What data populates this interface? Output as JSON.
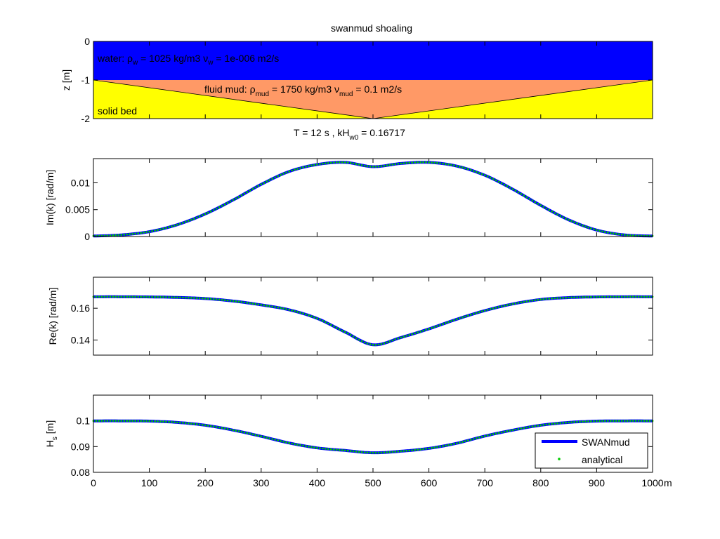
{
  "figure": {
    "title": "swanmud shoaling",
    "subtitle": "T = 12 s ,    kH",
    "subtitle_sub": "w0",
    "subtitle_tail": " = 0.16717",
    "x_unit": "m",
    "x_ticks": [
      0,
      100,
      200,
      300,
      400,
      500,
      600,
      700,
      800,
      900,
      1000
    ],
    "colors": {
      "water": "#0000ff",
      "fluid_mud": "#ff9966",
      "solid_bed": "#ffff00",
      "swan_line": "#0000ff",
      "analytical_marker": "#00cc00"
    }
  },
  "profile": {
    "ylabel": "z [m]",
    "y_ticks": [
      0,
      -1,
      -2
    ],
    "ylim": [
      -2,
      0
    ],
    "xlim": [
      0,
      1000
    ],
    "water_label": {
      "prefix": "water: ",
      "rho": "ρ",
      "rho_sub": "w",
      "mid": " = 1025 kg/m3 ",
      "nu": "ν",
      "nu_sub": "w",
      "tail": " = 1e-006 m2/s"
    },
    "mud_label": {
      "prefix": "fluid mud: ",
      "rho": "ρ",
      "rho_sub": "mud",
      "mid": " = 1750 kg/m3 ",
      "nu": "ν",
      "nu_sub": "mud",
      "tail": " = 0.1 m2/s"
    },
    "bed_label": "solid bed",
    "water_mud_interface": -1,
    "mud_bed_interface": {
      "x": [
        0,
        500,
        1000
      ],
      "z": [
        -1,
        -2,
        -1
      ]
    }
  },
  "legend": {
    "entries": [
      {
        "name": "SWANmud",
        "style": "line"
      },
      {
        "name": "analytical",
        "style": "dot"
      }
    ],
    "position": "bottom-right"
  },
  "chart_data": [
    {
      "type": "line",
      "ylabel": "Im(k) [rad/m]",
      "xlim": [
        0,
        1000
      ],
      "ylim": [
        0,
        0.0145
      ],
      "y_ticks": [
        0,
        0.005,
        0.01
      ],
      "y_tick_labels": [
        "0",
        "0.005",
        "0.01"
      ],
      "x": [
        0,
        50,
        100,
        150,
        200,
        250,
        300,
        350,
        400,
        450,
        500,
        550,
        600,
        650,
        700,
        750,
        800,
        850,
        900,
        950,
        1000
      ],
      "series": [
        {
          "name": "SWANmud",
          "values": [
            0.0001,
            0.0003,
            0.0009,
            0.0022,
            0.0042,
            0.0068,
            0.0097,
            0.0121,
            0.0134,
            0.0138,
            0.013,
            0.0136,
            0.0138,
            0.0131,
            0.0114,
            0.0088,
            0.0058,
            0.0031,
            0.0012,
            0.0003,
            0.0001
          ]
        },
        {
          "name": "analytical",
          "values": [
            0.0001,
            0.0003,
            0.0009,
            0.0022,
            0.0042,
            0.0068,
            0.0097,
            0.0121,
            0.0134,
            0.0138,
            0.013,
            0.0136,
            0.0138,
            0.0131,
            0.0114,
            0.0088,
            0.0058,
            0.0031,
            0.0012,
            0.0003,
            0.0001
          ]
        }
      ]
    },
    {
      "type": "line",
      "ylabel": "Re(k) [rad/m]",
      "xlim": [
        0,
        1000
      ],
      "ylim": [
        0.1305,
        0.1795
      ],
      "y_ticks": [
        0.14,
        0.16
      ],
      "y_tick_labels": [
        "0.14",
        "0.16"
      ],
      "x": [
        0,
        50,
        100,
        150,
        200,
        250,
        300,
        350,
        400,
        450,
        500,
        550,
        600,
        650,
        700,
        750,
        800,
        850,
        900,
        950,
        1000
      ],
      "series": [
        {
          "name": "SWANmud",
          "values": [
            0.1672,
            0.1672,
            0.1671,
            0.1668,
            0.1661,
            0.1645,
            0.1621,
            0.159,
            0.1536,
            0.145,
            0.137,
            0.1416,
            0.147,
            0.1531,
            0.1585,
            0.1627,
            0.1655,
            0.1667,
            0.1671,
            0.1672,
            0.1672
          ]
        },
        {
          "name": "analytical",
          "values": [
            0.1672,
            0.1672,
            0.1671,
            0.1668,
            0.1661,
            0.1645,
            0.1621,
            0.159,
            0.1536,
            0.145,
            0.137,
            0.1416,
            0.147,
            0.1531,
            0.1585,
            0.1627,
            0.1655,
            0.1667,
            0.1671,
            0.1672,
            0.1672
          ]
        }
      ]
    },
    {
      "type": "line",
      "ylabel": "H",
      "ylabel_sub": "s",
      "ylabel_tail": " [m]",
      "xlim": [
        0,
        1000
      ],
      "ylim": [
        0.08,
        0.11
      ],
      "y_ticks": [
        0.08,
        0.09,
        0.1
      ],
      "y_tick_labels": [
        "0.08",
        "0.09",
        "0.1"
      ],
      "x": [
        0,
        50,
        100,
        150,
        200,
        250,
        300,
        350,
        400,
        450,
        500,
        550,
        600,
        650,
        700,
        750,
        800,
        850,
        900,
        950,
        1000
      ],
      "series": [
        {
          "name": "SWANmud",
          "values": [
            0.1,
            0.1,
            0.0999,
            0.0994,
            0.0983,
            0.0964,
            0.094,
            0.0914,
            0.0895,
            0.0885,
            0.0876,
            0.0882,
            0.0893,
            0.0913,
            0.0941,
            0.0964,
            0.0983,
            0.0994,
            0.0999,
            0.1,
            0.1
          ]
        },
        {
          "name": "analytical",
          "values": [
            0.1,
            0.1,
            0.0999,
            0.0994,
            0.0983,
            0.0964,
            0.094,
            0.0914,
            0.0895,
            0.0885,
            0.0876,
            0.0882,
            0.0893,
            0.0913,
            0.0941,
            0.0964,
            0.0983,
            0.0994,
            0.0999,
            0.1,
            0.1
          ]
        }
      ]
    }
  ]
}
